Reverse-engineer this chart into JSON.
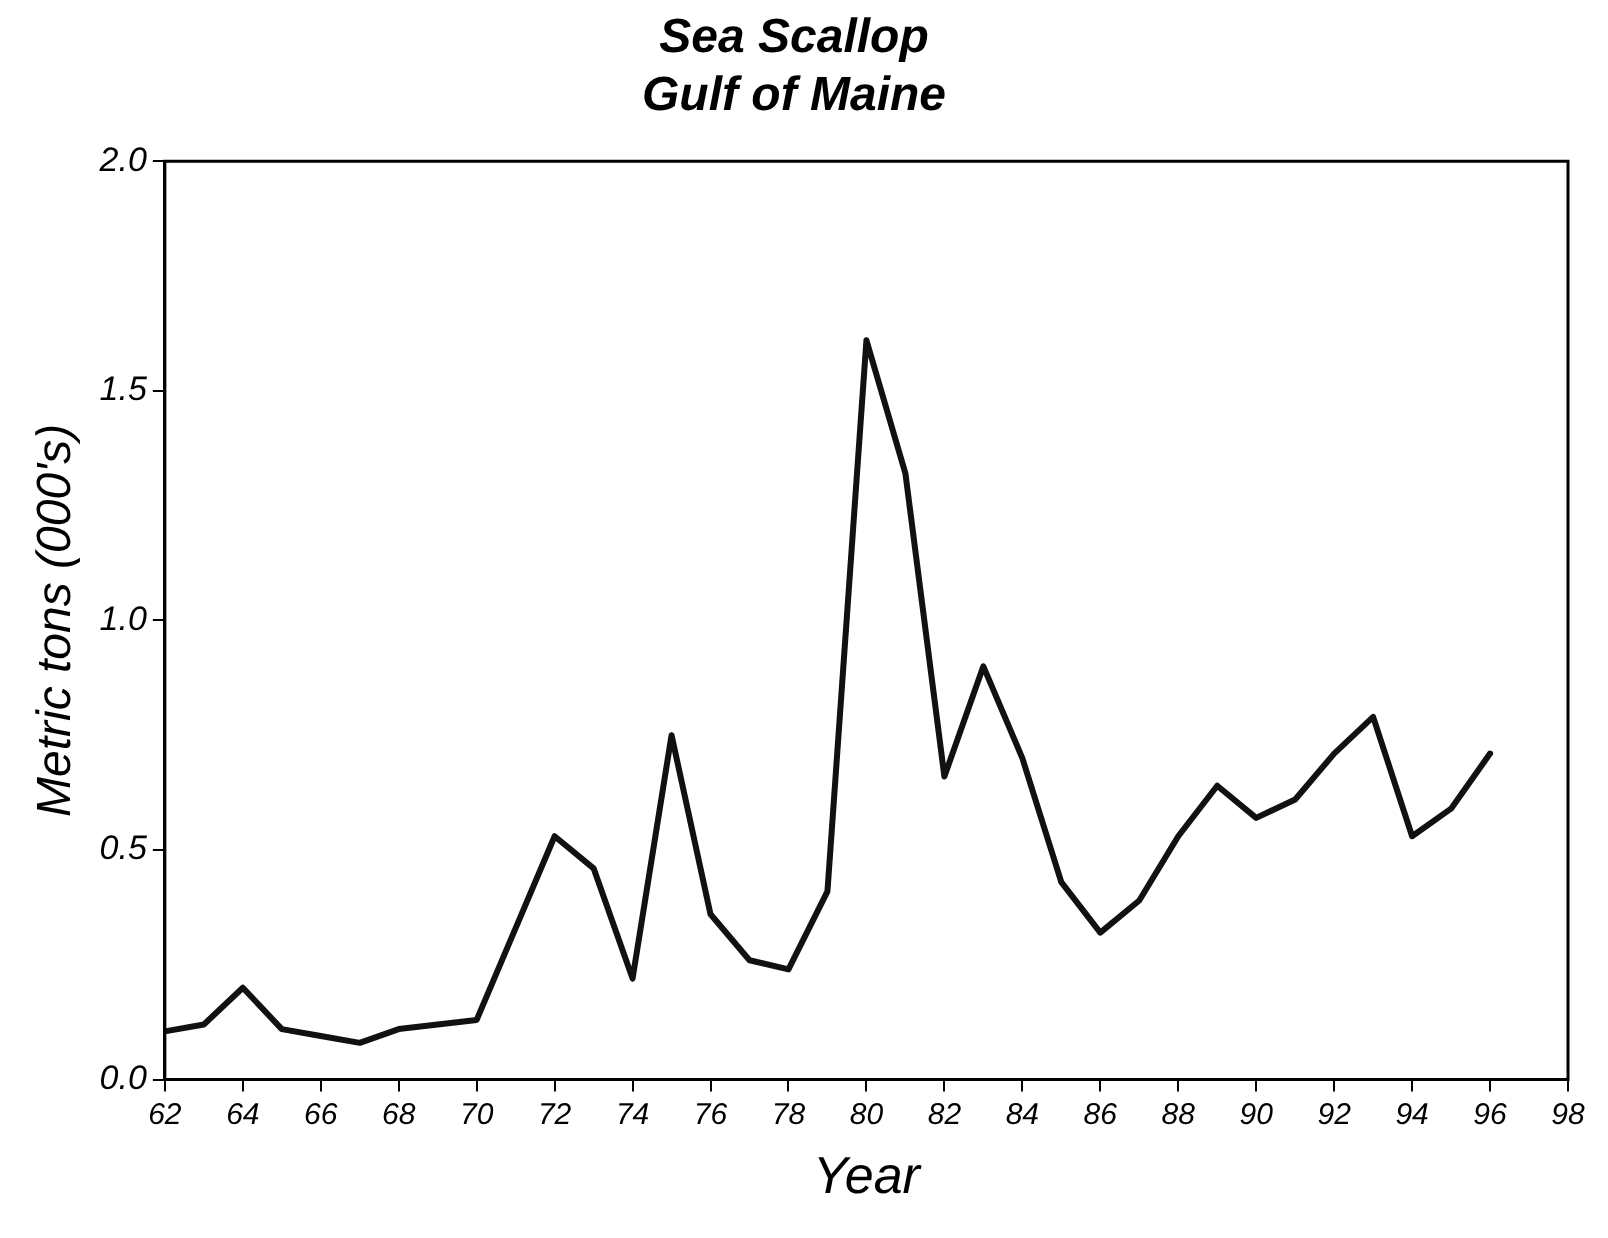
{
  "chart_data": {
    "type": "line",
    "title": "Sea Scallop",
    "subtitle": "Gulf of Maine",
    "xlabel": "Year",
    "ylabel": "Metric tons (000's)",
    "x": [
      62,
      63,
      64,
      65,
      66,
      67,
      68,
      69,
      70,
      71,
      72,
      73,
      74,
      75,
      76,
      77,
      78,
      79,
      80,
      81,
      82,
      83,
      84,
      85,
      86,
      87,
      88,
      89,
      90,
      91,
      92,
      93,
      94,
      95,
      96
    ],
    "series": [
      {
        "color": "#111111",
        "values": [
          0.105,
          0.12,
          0.2,
          0.11,
          0.095,
          0.08,
          0.11,
          0.12,
          0.13,
          0.33,
          0.53,
          0.46,
          0.22,
          0.75,
          0.36,
          0.26,
          0.24,
          0.41,
          1.61,
          1.32,
          0.66,
          0.9,
          0.7,
          0.43,
          0.32,
          0.39,
          0.53,
          0.64,
          0.57,
          0.61,
          0.71,
          0.79,
          0.53,
          0.59,
          0.71
        ]
      }
    ],
    "xlim": [
      62,
      98
    ],
    "xticks": [
      62,
      64,
      66,
      68,
      70,
      72,
      74,
      76,
      78,
      80,
      82,
      84,
      86,
      88,
      90,
      92,
      94,
      96,
      98
    ],
    "ylim": [
      0,
      2
    ],
    "yticks": [
      {
        "value": 0,
        "label": "0.0"
      },
      {
        "value": 0.5,
        "label": "0.5"
      },
      {
        "value": 1,
        "label": "1.0"
      },
      {
        "value": 1.5,
        "label": "1.5"
      },
      {
        "value": 2,
        "label": "2.0"
      }
    ],
    "grid": false,
    "legend": false,
    "marker": "none",
    "line_style": "solid"
  }
}
